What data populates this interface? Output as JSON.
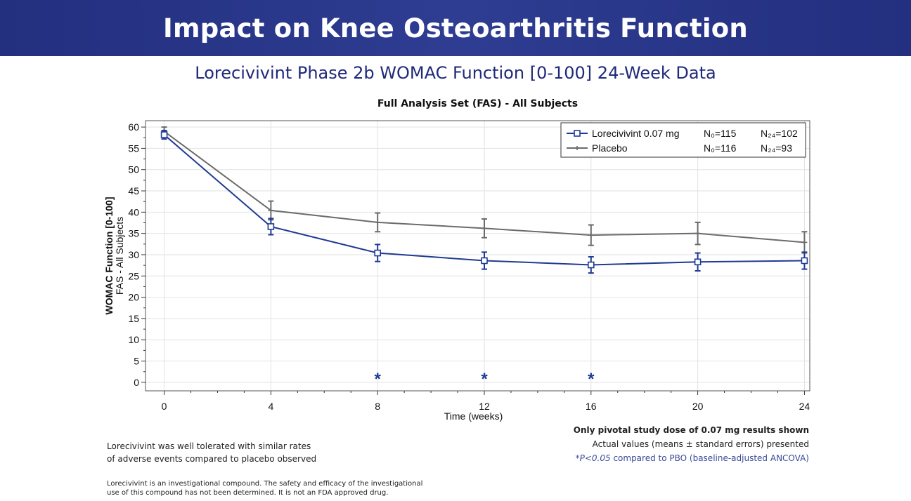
{
  "header": {
    "title": "Impact on Knee Osteoarthritis Function"
  },
  "slide": {
    "subtitle": "Lorecivivint Phase 2b WOMAC Function [0-100] 24-Week Data"
  },
  "chart_data": {
    "type": "line",
    "title": "Full Analysis Set (FAS) - All Subjects",
    "xlabel": "Time (weeks)",
    "ylabel": "WOMAC Function [0-100]",
    "ylabel2": "FAS - All Subjects",
    "xlim": [
      0,
      24
    ],
    "ylim": [
      0,
      60
    ],
    "xticks": [
      0,
      4,
      8,
      12,
      16,
      20,
      24
    ],
    "yticks": [
      0,
      5,
      10,
      15,
      20,
      25,
      30,
      35,
      40,
      45,
      50,
      55,
      60
    ],
    "grid": true,
    "legend_position": "top-right",
    "series": [
      {
        "name": "Lorecivivint 0.07 mg",
        "n0": "N₀=115",
        "n24": "N₂₄=102",
        "color": "#1f3a93",
        "marker": "square",
        "x": [
          0,
          4,
          8,
          12,
          16,
          20,
          24
        ],
        "y": [
          58.2,
          36.6,
          30.4,
          28.6,
          27.6,
          28.3,
          28.6
        ],
        "err": [
          1.0,
          1.9,
          2.0,
          2.0,
          1.9,
          2.1,
          2.0
        ]
      },
      {
        "name": "Placebo",
        "n0": "N₀=116",
        "n24": "N₂₄=93",
        "color": "#6b6b6b",
        "marker": "plus",
        "x": [
          0,
          4,
          8,
          12,
          16,
          20,
          24
        ],
        "y": [
          59.0,
          40.4,
          37.6,
          36.2,
          34.6,
          35.0,
          32.9
        ],
        "err": [
          1.0,
          2.2,
          2.2,
          2.2,
          2.4,
          2.6,
          2.5
        ]
      }
    ],
    "significance": {
      "marker": "*",
      "x": [
        8,
        12,
        16
      ],
      "y": 1.5,
      "color": "#1f3a93"
    }
  },
  "notes": {
    "pivotal": "Only pivotal study dose of 0.07 mg results shown",
    "actual": "Actual values (means ± standard errors) presented",
    "pvalue_italic": "*P<0.05",
    "pvalue_rest": " compared to PBO (baseline-adjusted ANCOVA)",
    "tolerated_line1": "Lorecivivint was well tolerated with similar rates",
    "tolerated_line2": "of adverse events compared to placebo observed",
    "disclaimer_line1": "Lorecivivint is an investigational compound. The safety and efficacy of the investigational",
    "disclaimer_line2": "use of this compound has not been determined. It is not an FDA approved drug."
  }
}
